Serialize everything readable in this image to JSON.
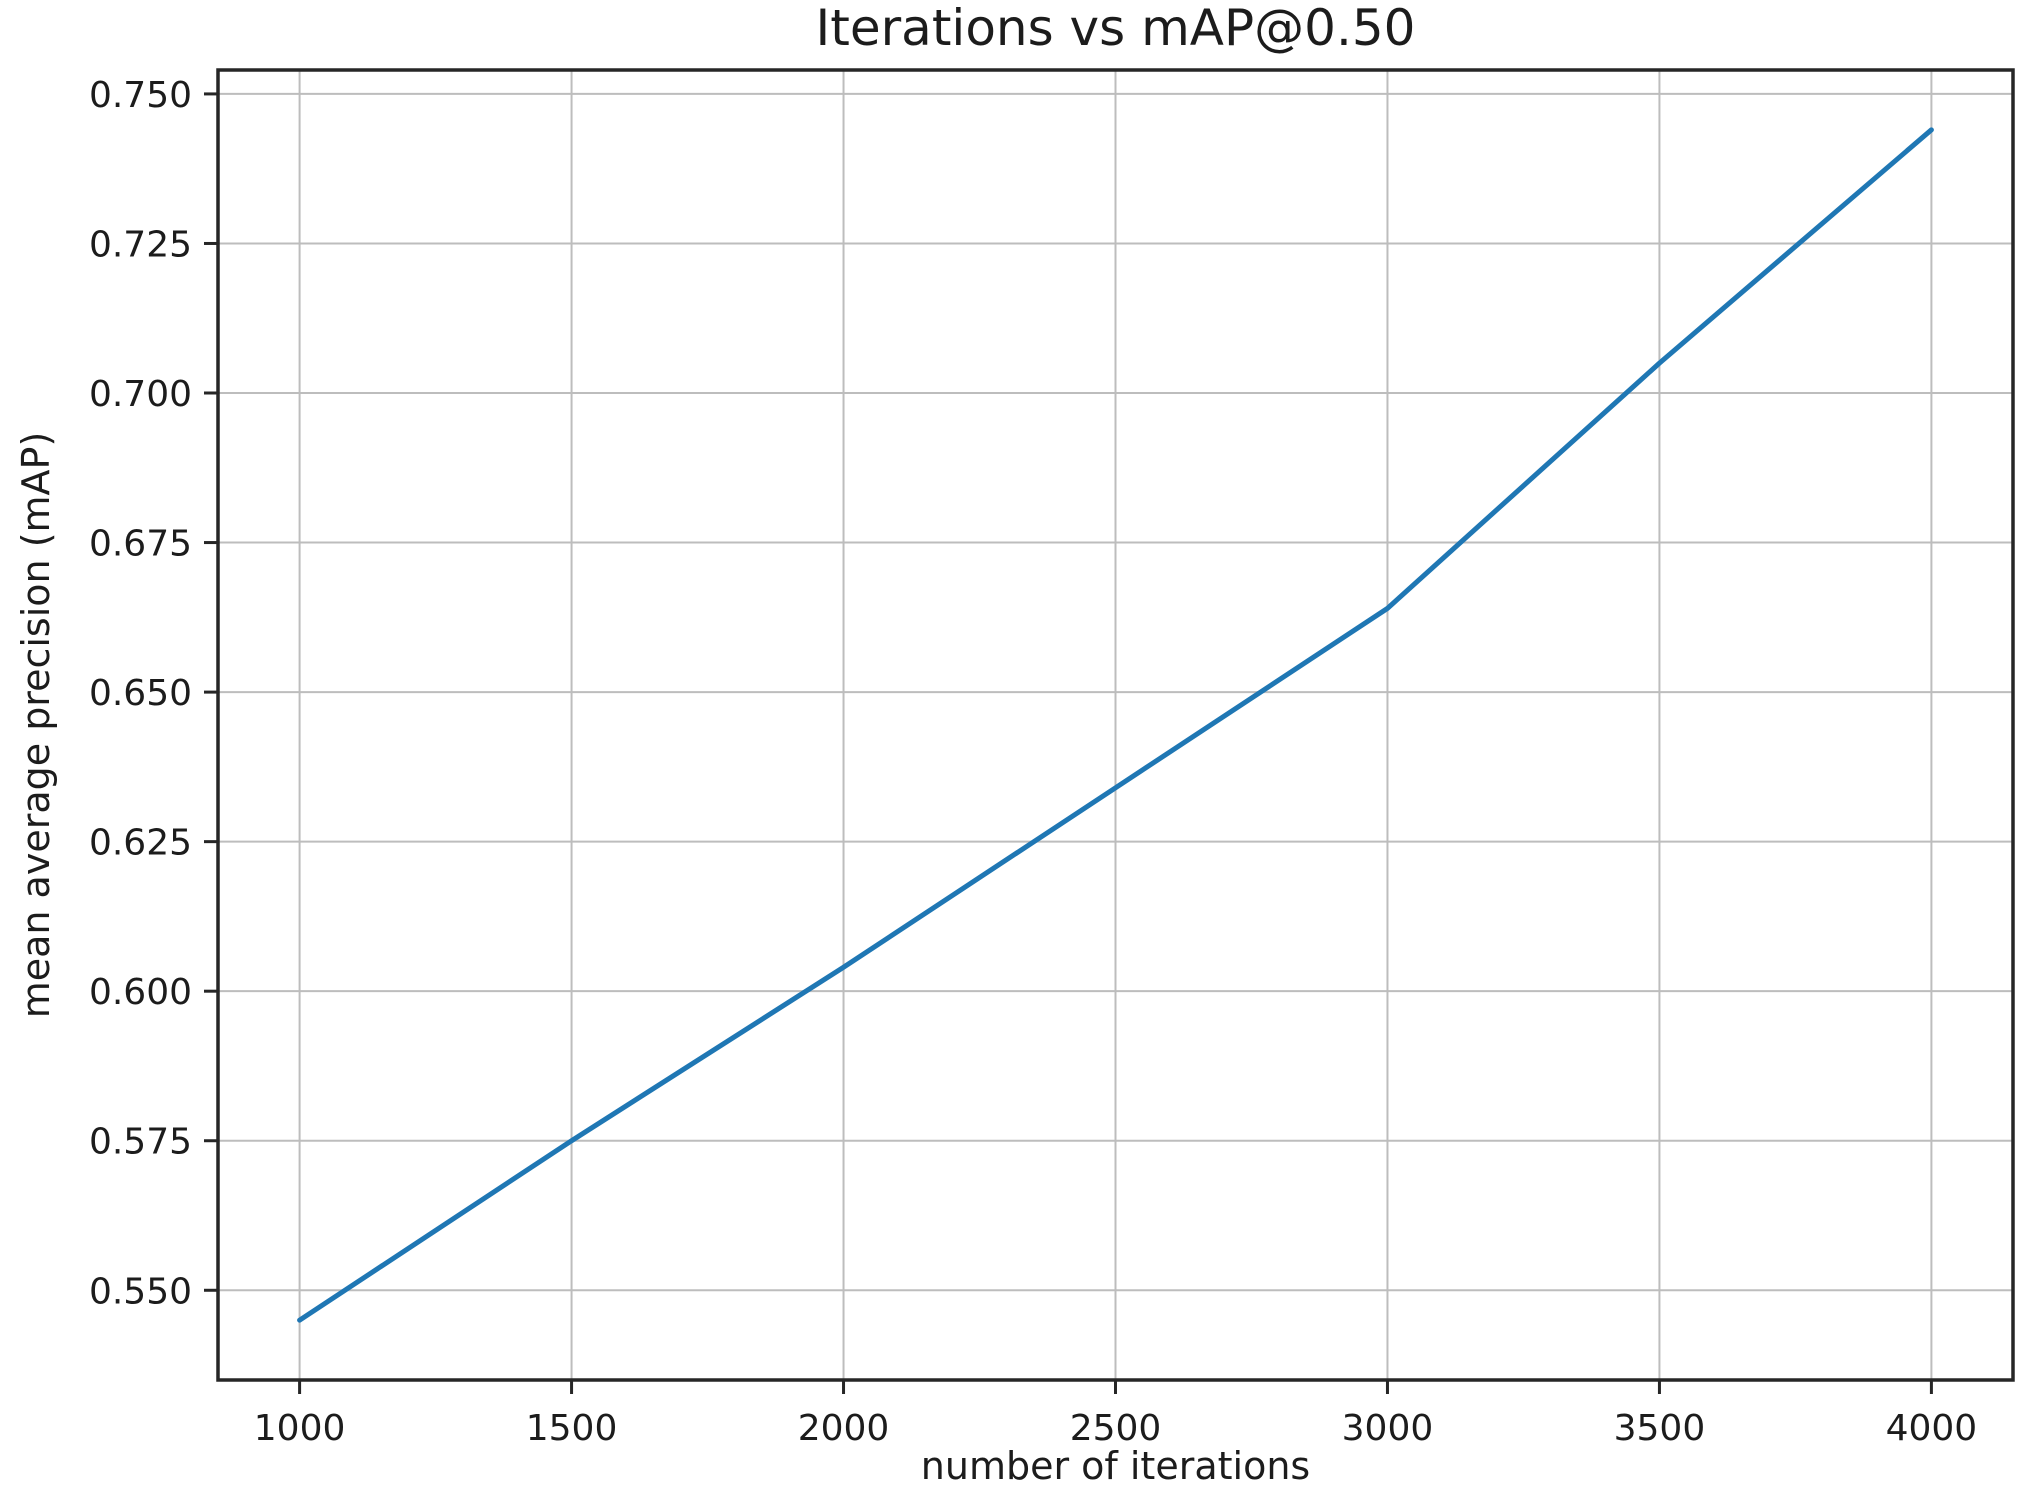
{
  "chart_data": {
    "type": "line",
    "title": "Iterations vs mAP@0.50",
    "xlabel": "number of iterations",
    "ylabel": "mean average precision (mAP)",
    "x": [
      1000,
      1500,
      2000,
      2500,
      3000,
      3500,
      4000
    ],
    "y": [
      0.545,
      0.575,
      0.604,
      0.634,
      0.664,
      0.705,
      0.744
    ],
    "xticks": [
      1000,
      1500,
      2000,
      2500,
      3000,
      3500,
      4000
    ],
    "yticks": [
      0.55,
      0.575,
      0.6,
      0.625,
      0.65,
      0.675,
      0.7,
      0.725,
      0.75
    ],
    "ytick_decimals": 3,
    "xlim": [
      850,
      4150
    ],
    "ylim": [
      0.535,
      0.754
    ],
    "grid": true,
    "legend": "none",
    "line_color": "#1f77b4",
    "grid_color": "#bdbdbd",
    "axis_color": "#262626",
    "text_color": "#1c1c1c",
    "background": "#ffffff"
  }
}
